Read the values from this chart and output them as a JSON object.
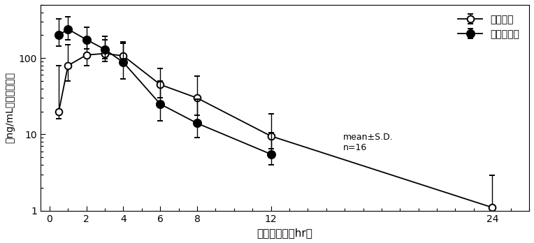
{
  "xlabel": "投与後時間（hr）",
  "ylabel": "（ng/mL）血漿中濃度",
  "legend_label_open": "食後投与",
  "legend_label_filled": "空腹時投与",
  "annotation": "mean±S.D.\nn=16",
  "x_open": [
    0.5,
    1,
    2,
    3,
    4,
    6,
    8,
    12,
    24
  ],
  "y_open": [
    20,
    80,
    110,
    115,
    107,
    45,
    30,
    9.5,
    1.1
  ],
  "yerr_open_lo": [
    4,
    30,
    30,
    25,
    25,
    15,
    12,
    3,
    0.35
  ],
  "yerr_open_hi": [
    60,
    70,
    70,
    60,
    55,
    28,
    28,
    9,
    1.8
  ],
  "x_filled": [
    0.5,
    1,
    2,
    3,
    4,
    6,
    8,
    12
  ],
  "y_filled": [
    200,
    240,
    175,
    130,
    88,
    25,
    14,
    5.5
  ],
  "yerr_filled_lo": [
    55,
    65,
    42,
    32,
    35,
    10,
    5,
    1.5
  ],
  "yerr_filled_hi": [
    130,
    110,
    80,
    65,
    70,
    25,
    15,
    5
  ],
  "ylim": [
    1,
    500
  ],
  "xlim": [
    -0.5,
    26
  ],
  "xticks": [
    0,
    2,
    4,
    6,
    8,
    12,
    24
  ],
  "xticklabels": [
    "0",
    "2",
    "4",
    "6",
    "8",
    "12",
    "24"
  ],
  "yticks": [
    1,
    10,
    100
  ],
  "yticklabels": [
    "1",
    "10",
    "100"
  ],
  "bg_color": "#ffffff",
  "line_color": "#000000",
  "marker_size": 7,
  "lw": 1.3
}
